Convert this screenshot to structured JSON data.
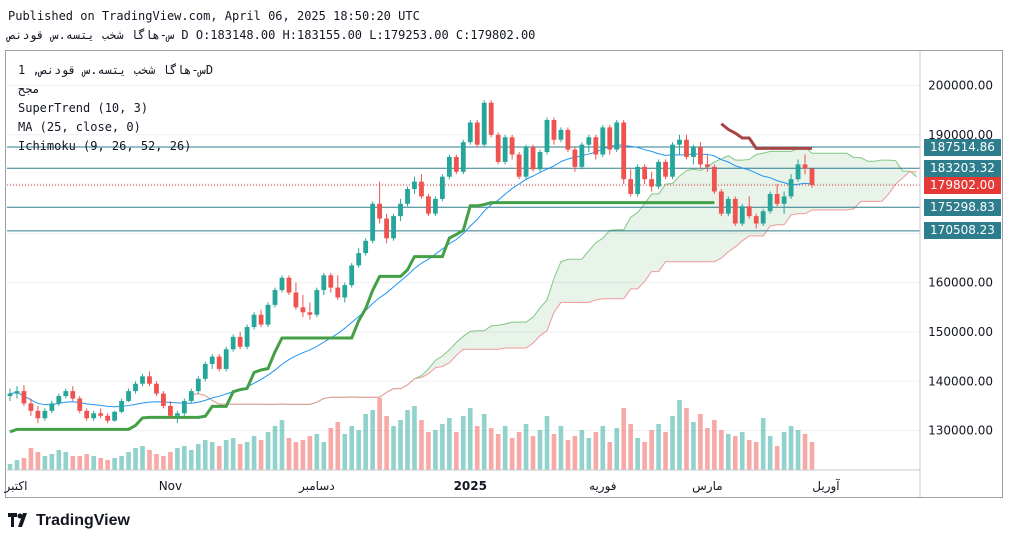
{
  "header": {
    "published": "Published on TradingView.com, April 06, 2025 18:50:20 UTC",
    "ohlc": "س-هاگا شخب یتسه.س قودنص D O:183148.00 H:183155.00 L:179253.00 C:179802.00"
  },
  "legend": {
    "symbol": "س-هاگا شخب یتسه.س قودنص, 1D",
    "exchange": "مجح",
    "supertrend": "SuperTrend (10, 3)",
    "ma": "MA (25, close, 0)",
    "ichimoku": "Ichimoku (9, 26, 52, 26)"
  },
  "price_labels": [
    {
      "text": "187514.86",
      "value": 187514.86,
      "color": "#2e7d8c"
    },
    {
      "text": "183203.32",
      "value": 183203.32,
      "color": "#2e7d8c"
    },
    {
      "text": "179802.00",
      "value": 179802.0,
      "color": "#e53935"
    },
    {
      "text": "175298.83",
      "value": 175298.83,
      "color": "#2e7d8c"
    },
    {
      "text": "170508.23",
      "value": 170508.23,
      "color": "#2e7d8c"
    }
  ],
  "brand": {
    "logo_text": "TradingView"
  },
  "colors": {
    "up": "#26a69a",
    "down": "#ef5350",
    "supertrend_up": "#43a047",
    "supertrend_down": "#a84545",
    "ma": "#2196f3",
    "hline": "#2e7d8c"
  },
  "chart_data": {
    "type": "candlestick",
    "ylim": [
      122000,
      207000
    ],
    "yticks": [
      130000,
      140000,
      150000,
      160000,
      170000,
      180000,
      190000,
      200000
    ],
    "ytick_labels": [
      "130000.00",
      "140000.00",
      "150000.00",
      "160000.00",
      "170000.00",
      "180000.00",
      "190000.00",
      "200000.00"
    ],
    "xticks": [
      {
        "label": "اکتبر",
        "index": 0
      },
      {
        "label": "Nov",
        "index": 23
      },
      {
        "label": "دسامبر",
        "index": 44
      },
      {
        "label": "2025",
        "index": 66
      },
      {
        "label": "فوریه",
        "index": 85
      },
      {
        "label": "مارس",
        "index": 100
      },
      {
        "label": "آوریل",
        "index": 117
      }
    ],
    "horizontal_levels": [
      187514.86,
      183203.32,
      175298.83,
      170508.23
    ],
    "last_close": 179802.0,
    "candles": [
      [
        137000,
        138500,
        136000,
        137500
      ],
      [
        137500,
        139000,
        136500,
        138000
      ],
      [
        138000,
        139200,
        135000,
        135500
      ],
      [
        135500,
        136500,
        133000,
        134000
      ],
      [
        134000,
        135000,
        131500,
        132500
      ],
      [
        132500,
        134500,
        132000,
        134000
      ],
      [
        134000,
        136000,
        133500,
        135500
      ],
      [
        135500,
        137500,
        135000,
        137000
      ],
      [
        137000,
        138500,
        136500,
        138000
      ],
      [
        138000,
        139000,
        136000,
        136500
      ],
      [
        136500,
        137000,
        133500,
        134000
      ],
      [
        134000,
        134500,
        132000,
        132500
      ],
      [
        132500,
        134000,
        132000,
        133500
      ],
      [
        133500,
        134500,
        132500,
        133000
      ],
      [
        133000,
        133500,
        131500,
        132000
      ],
      [
        132000,
        134000,
        131800,
        133800
      ],
      [
        133800,
        136500,
        133500,
        136000
      ],
      [
        136000,
        138500,
        135800,
        138000
      ],
      [
        138000,
        140000,
        137500,
        139500
      ],
      [
        139500,
        141500,
        139000,
        141000
      ],
      [
        141000,
        142000,
        139000,
        139500
      ],
      [
        139500,
        140000,
        137000,
        137500
      ],
      [
        137500,
        138000,
        134500,
        135000
      ],
      [
        135000,
        136000,
        132500,
        133000
      ],
      [
        133000,
        134000,
        131500,
        133500
      ],
      [
        133500,
        136500,
        133000,
        136000
      ],
      [
        136000,
        138500,
        135500,
        138000
      ],
      [
        138000,
        141000,
        137500,
        140500
      ],
      [
        140500,
        144000,
        140000,
        143500
      ],
      [
        143500,
        145500,
        142500,
        145000
      ],
      [
        145000,
        145500,
        142000,
        142500
      ],
      [
        142500,
        147000,
        142000,
        146500
      ],
      [
        146500,
        149500,
        146000,
        149000
      ],
      [
        149000,
        150000,
        146500,
        147000
      ],
      [
        147000,
        151500,
        146500,
        151000
      ],
      [
        151000,
        154000,
        150500,
        153500
      ],
      [
        153500,
        154500,
        151000,
        151500
      ],
      [
        151500,
        156000,
        151000,
        155500
      ],
      [
        155500,
        159000,
        155000,
        158500
      ],
      [
        158500,
        161500,
        158000,
        161000
      ],
      [
        161000,
        161500,
        157500,
        158000
      ],
      [
        158000,
        160000,
        154500,
        155000
      ],
      [
        155000,
        157500,
        153000,
        154000
      ],
      [
        154000,
        156000,
        152500,
        153500
      ],
      [
        153500,
        159000,
        153000,
        158500
      ],
      [
        158500,
        162000,
        157500,
        161500
      ],
      [
        161500,
        162000,
        158000,
        159000
      ],
      [
        159000,
        161500,
        156500,
        157000
      ],
      [
        157000,
        160000,
        156000,
        159500
      ],
      [
        159500,
        164000,
        159000,
        163500
      ],
      [
        163500,
        167000,
        163000,
        166000
      ],
      [
        166000,
        169000,
        165500,
        168500
      ],
      [
        168500,
        176500,
        168000,
        176000
      ],
      [
        176000,
        180500,
        172000,
        173000
      ],
      [
        173000,
        174000,
        168000,
        169000
      ],
      [
        169000,
        174000,
        168500,
        173500
      ],
      [
        173500,
        177000,
        172500,
        176000
      ],
      [
        176000,
        179500,
        175500,
        179000
      ],
      [
        179000,
        181500,
        178000,
        180500
      ],
      [
        180500,
        182000,
        177000,
        177500
      ],
      [
        177500,
        178000,
        173500,
        174000
      ],
      [
        174000,
        177500,
        173500,
        177000
      ],
      [
        177000,
        182000,
        176500,
        181500
      ],
      [
        181500,
        186000,
        181000,
        185500
      ],
      [
        185500,
        186000,
        182000,
        182500
      ],
      [
        182500,
        189000,
        182000,
        188500
      ],
      [
        188500,
        193000,
        188000,
        192500
      ],
      [
        192500,
        193000,
        187500,
        188000
      ],
      [
        188000,
        197000,
        187500,
        196500
      ],
      [
        196500,
        197000,
        189500,
        190000
      ],
      [
        190000,
        190500,
        184000,
        184500
      ],
      [
        184500,
        190000,
        184000,
        189500
      ],
      [
        189500,
        190000,
        185000,
        186000
      ],
      [
        186000,
        186500,
        181000,
        181500
      ],
      [
        181500,
        188000,
        181000,
        187500
      ],
      [
        187500,
        188000,
        182500,
        183000
      ],
      [
        183000,
        187000,
        182500,
        186500
      ],
      [
        186500,
        193500,
        186000,
        193000
      ],
      [
        193000,
        193500,
        188000,
        189000
      ],
      [
        189000,
        191500,
        188500,
        191000
      ],
      [
        191000,
        191500,
        186500,
        187000
      ],
      [
        187000,
        187500,
        182500,
        183500
      ],
      [
        183500,
        188500,
        183000,
        188000
      ],
      [
        188000,
        190000,
        186500,
        189500
      ],
      [
        189500,
        190000,
        185000,
        186000
      ],
      [
        186000,
        192000,
        185500,
        191500
      ],
      [
        191500,
        192000,
        186000,
        187000
      ],
      [
        187000,
        193000,
        186500,
        192500
      ],
      [
        192500,
        193000,
        180000,
        181000
      ],
      [
        181000,
        183000,
        177500,
        178000
      ],
      [
        178000,
        184000,
        177500,
        183500
      ],
      [
        183500,
        184000,
        180000,
        181000
      ],
      [
        181000,
        182500,
        178500,
        179500
      ],
      [
        179500,
        185000,
        179000,
        184500
      ],
      [
        184500,
        185000,
        181000,
        181500
      ],
      [
        181500,
        188500,
        181000,
        188000
      ],
      [
        188000,
        190000,
        186000,
        189000
      ],
      [
        189000,
        190000,
        185000,
        185500
      ],
      [
        185500,
        188000,
        184000,
        187500
      ],
      [
        187500,
        188500,
        183000,
        184000
      ],
      [
        184000,
        186000,
        182500,
        183500
      ],
      [
        183500,
        184000,
        178000,
        178500
      ],
      [
        178500,
        179000,
        173500,
        174000
      ],
      [
        174000,
        177500,
        173500,
        177000
      ],
      [
        177000,
        177500,
        171500,
        172000
      ],
      [
        172000,
        176000,
        171500,
        175500
      ],
      [
        175500,
        177500,
        173000,
        173500
      ],
      [
        173500,
        174000,
        171000,
        172000
      ],
      [
        172000,
        175000,
        171500,
        174500
      ],
      [
        174500,
        178500,
        174000,
        178000
      ],
      [
        178000,
        180000,
        175500,
        176000
      ],
      [
        176000,
        178500,
        174000,
        177500
      ],
      [
        177500,
        182000,
        177000,
        181000
      ],
      [
        181000,
        185000,
        180500,
        184000
      ],
      [
        184000,
        186000,
        182000,
        183148
      ],
      [
        183148,
        183155,
        179253,
        179802
      ]
    ],
    "volume": [
      6,
      10,
      12,
      22,
      18,
      14,
      16,
      20,
      18,
      14,
      14,
      16,
      14,
      12,
      10,
      12,
      14,
      18,
      22,
      24,
      20,
      16,
      14,
      18,
      22,
      24,
      20,
      26,
      30,
      28,
      24,
      30,
      32,
      26,
      28,
      34,
      30,
      38,
      44,
      50,
      32,
      28,
      30,
      34,
      36,
      28,
      42,
      48,
      36,
      44,
      40,
      56,
      60,
      72,
      54,
      44,
      50,
      60,
      64,
      50,
      38,
      40,
      46,
      52,
      38,
      54,
      62,
      44,
      56,
      42,
      36,
      44,
      32,
      38,
      46,
      34,
      40,
      54,
      36,
      44,
      30,
      34,
      40,
      32,
      38,
      44,
      28,
      42,
      62,
      46,
      32,
      28,
      40,
      46,
      38,
      54,
      70,
      62,
      48,
      56,
      42,
      50,
      40,
      36,
      34,
      38,
      30,
      28,
      52,
      34,
      24,
      38,
      44,
      40,
      36,
      28
    ]
  }
}
